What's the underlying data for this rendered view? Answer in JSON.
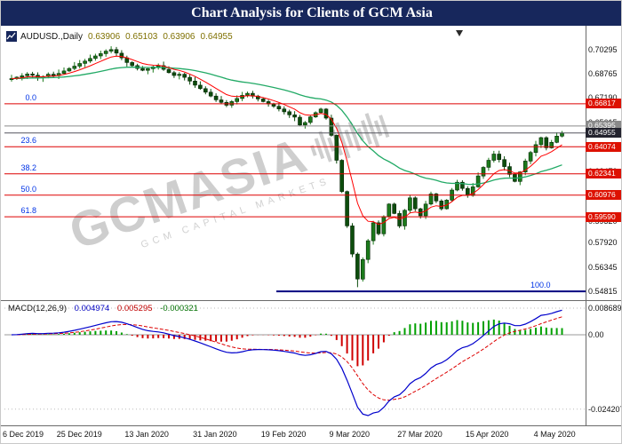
{
  "title": "Chart Analysis for Clients of GCM Asia",
  "symbol_header": {
    "symbol": "AUDUSD.,Daily",
    "open": "0.63906",
    "high": "0.65103",
    "low": "0.63906",
    "close": "0.64955"
  },
  "watermark": {
    "text": "GCMASIA",
    "subtext": "GCM CAPITAL MARKETS"
  },
  "macd_header": {
    "label": "MACD(12,26,9)",
    "macd": "0.004974",
    "signal": "0.005295",
    "hist": "-0.000321"
  },
  "chart_data": {
    "type": "candlestick",
    "symbol": "AUDUSD",
    "timeframe": "Daily",
    "open_first": 0.6836,
    "closes": [
      0.6843,
      0.6852,
      0.6861,
      0.6872,
      0.6865,
      0.6848,
      0.6856,
      0.6871,
      0.6862,
      0.6876,
      0.6892,
      0.6908,
      0.6923,
      0.694,
      0.6955,
      0.6972,
      0.6988,
      0.7003,
      0.7019,
      0.7029,
      0.7006,
      0.6976,
      0.6946,
      0.6926,
      0.6908,
      0.6896,
      0.6906,
      0.6918,
      0.6926,
      0.6902,
      0.6881,
      0.6863,
      0.6871,
      0.6851,
      0.6827,
      0.6801,
      0.6779,
      0.6756,
      0.6731,
      0.6707,
      0.6691,
      0.6673,
      0.6696,
      0.6716,
      0.6736,
      0.6749,
      0.6731,
      0.6713,
      0.6696,
      0.6681,
      0.6666,
      0.6649,
      0.6631,
      0.6611,
      0.6596,
      0.6546,
      0.6562,
      0.6598,
      0.6625,
      0.6648,
      0.659,
      0.648,
      0.632,
      0.612,
      0.59,
      0.572,
      0.556,
      0.5685,
      0.5805,
      0.592,
      0.585,
      0.596,
      0.604,
      0.598,
      0.59,
      0.6,
      0.608,
      0.601,
      0.5965,
      0.604,
      0.6105,
      0.606,
      0.601,
      0.6065,
      0.613,
      0.618,
      0.614,
      0.6095,
      0.615,
      0.622,
      0.6275,
      0.632,
      0.636,
      0.6325,
      0.628,
      0.623,
      0.6185,
      0.6245,
      0.6315,
      0.637,
      0.642,
      0.6465,
      0.64,
      0.6435,
      0.6475,
      0.64955
    ],
    "x_labels": [
      "6 Dec 2019",
      "25 Dec 2019",
      "13 Jan 2020",
      "31 Jan 2020",
      "19 Feb 2020",
      "9 Mar 2020",
      "27 Mar 2020",
      "15 Apr 2020",
      "4 May 2020"
    ],
    "x_label_indices": [
      0,
      13,
      26,
      39,
      52,
      65,
      78,
      91,
      104
    ],
    "price_axis_ticks": [
      "0.70295",
      "0.68765",
      "0.67190",
      "0.65615",
      "0.64045",
      "0.62470",
      "0.60895",
      "0.59320",
      "0.57920",
      "0.56345",
      "0.54815"
    ],
    "price_range": {
      "top": 0.717,
      "bottom": 0.5425
    },
    "fib_levels": [
      {
        "pct": "0.0",
        "price": 0.66817,
        "tag": "0.66817"
      },
      {
        "pct": "23.6",
        "price": 0.64074,
        "tag": "0.64074"
      },
      {
        "pct": "38.2",
        "price": 0.62341,
        "tag": "0.62341"
      },
      {
        "pct": "50.0",
        "price": 0.60976,
        "tag": "0.60976"
      },
      {
        "pct": "61.8",
        "price": 0.5959,
        "tag": "0.59590"
      },
      {
        "pct": "100.0",
        "price": 0.54815,
        "tag": ""
      }
    ],
    "price_lines": [
      {
        "price": 0.65395,
        "tag": "0.65395",
        "line_color": "#8a8a8a",
        "box_color": "#8a8a8a"
      },
      {
        "price": 0.64955,
        "tag": "0.64955",
        "line_color": "#55555f",
        "box_color": "#23232e"
      }
    ],
    "macd": {
      "params": [
        12,
        26,
        9
      ],
      "axis_ticks": [
        "0.008689",
        "0.00",
        "-0.024207"
      ],
      "range": {
        "top": 0.011,
        "bottom": -0.0295
      }
    },
    "colors": {
      "candle_up": "#1b7a1b",
      "candle_down": "#0d4d0d",
      "candle_border": "#052605",
      "ma_fast": "#ff0000",
      "ma_slow": "#22aa66",
      "fib_red": "#dd0000",
      "fib_base": "#000080",
      "level_blue": "#0033e6",
      "macd_line": "#0000cc",
      "macd_signal": "#dd0000",
      "hist_pos": "#00a000",
      "hist_neg": "#d00000",
      "tag_red": "#dd1100"
    }
  }
}
